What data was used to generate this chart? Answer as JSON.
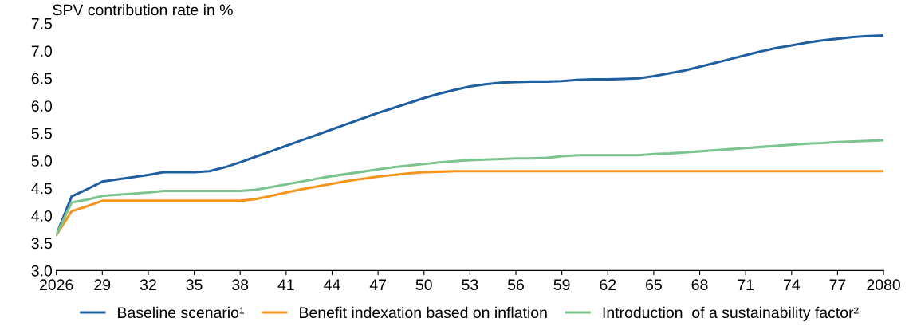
{
  "chart_data": {
    "type": "line",
    "ylabel": "SPV contribution rate in %",
    "x": [
      2026,
      2027,
      2028,
      2029,
      2030,
      2031,
      2032,
      2033,
      2034,
      2035,
      2036,
      2037,
      2038,
      2039,
      2040,
      2041,
      2042,
      2043,
      2044,
      2045,
      2046,
      2047,
      2048,
      2049,
      2050,
      2051,
      2052,
      2053,
      2054,
      2055,
      2056,
      2057,
      2058,
      2059,
      2060,
      2061,
      2062,
      2063,
      2064,
      2065,
      2066,
      2067,
      2068,
      2069,
      2070,
      2071,
      2072,
      2073,
      2074,
      2075,
      2076,
      2077,
      2078,
      2079,
      2080
    ],
    "series": [
      {
        "name": "Baseline scenario¹",
        "color": "#1f5fa0",
        "values": [
          3.65,
          4.35,
          4.48,
          4.62,
          4.66,
          4.7,
          4.74,
          4.79,
          4.79,
          4.79,
          4.81,
          4.88,
          4.97,
          5.07,
          5.17,
          5.27,
          5.37,
          5.47,
          5.57,
          5.67,
          5.77,
          5.87,
          5.96,
          6.05,
          6.14,
          6.22,
          6.29,
          6.35,
          6.39,
          6.42,
          6.43,
          6.44,
          6.44,
          6.45,
          6.47,
          6.48,
          6.48,
          6.49,
          6.5,
          6.54,
          6.59,
          6.64,
          6.71,
          6.78,
          6.85,
          6.92,
          6.99,
          7.05,
          7.1,
          7.15,
          7.19,
          7.22,
          7.25,
          7.27,
          7.28
        ]
      },
      {
        "name": "Benefit indexation based on inflation",
        "color": "#f7941d",
        "values": [
          3.65,
          4.08,
          4.17,
          4.27,
          4.27,
          4.27,
          4.27,
          4.27,
          4.27,
          4.27,
          4.27,
          4.27,
          4.27,
          4.3,
          4.36,
          4.42,
          4.48,
          4.53,
          4.58,
          4.63,
          4.67,
          4.71,
          4.74,
          4.77,
          4.79,
          4.8,
          4.81,
          4.81,
          4.81,
          4.81,
          4.81,
          4.81,
          4.81,
          4.81,
          4.81,
          4.81,
          4.81,
          4.81,
          4.81,
          4.81,
          4.81,
          4.81,
          4.81,
          4.81,
          4.81,
          4.81,
          4.81,
          4.81,
          4.81,
          4.81,
          4.81,
          4.81,
          4.81,
          4.81,
          4.81
        ]
      },
      {
        "name": "Introduction  of a sustainability factor²",
        "color": "#7cc48e",
        "values": [
          3.65,
          4.24,
          4.29,
          4.36,
          4.38,
          4.4,
          4.42,
          4.45,
          4.45,
          4.45,
          4.45,
          4.45,
          4.45,
          4.47,
          4.52,
          4.57,
          4.62,
          4.67,
          4.72,
          4.76,
          4.8,
          4.84,
          4.88,
          4.91,
          4.94,
          4.97,
          4.99,
          5.01,
          5.02,
          5.03,
          5.04,
          5.04,
          5.05,
          5.08,
          5.1,
          5.1,
          5.1,
          5.1,
          5.1,
          5.12,
          5.13,
          5.15,
          5.17,
          5.19,
          5.21,
          5.23,
          5.25,
          5.27,
          5.29,
          5.31,
          5.32,
          5.34,
          5.35,
          5.36,
          5.37
        ]
      }
    ],
    "xlim": [
      2026,
      2080
    ],
    "ylim": [
      3.0,
      7.5
    ],
    "xticks": [
      2026,
      {
        "value": 2029,
        "label": "29"
      },
      {
        "value": 2032,
        "label": "32"
      },
      {
        "value": 2035,
        "label": "35"
      },
      {
        "value": 2038,
        "label": "38"
      },
      {
        "value": 2041,
        "label": "41"
      },
      {
        "value": 2044,
        "label": "44"
      },
      {
        "value": 2047,
        "label": "47"
      },
      {
        "value": 2050,
        "label": "50"
      },
      {
        "value": 2053,
        "label": "53"
      },
      {
        "value": 2056,
        "label": "56"
      },
      {
        "value": 2059,
        "label": "59"
      },
      {
        "value": 2062,
        "label": "62"
      },
      {
        "value": 2065,
        "label": "65"
      },
      {
        "value": 2068,
        "label": "68"
      },
      {
        "value": 2071,
        "label": "71"
      },
      {
        "value": 2074,
        "label": "74"
      },
      {
        "value": 2077,
        "label": "77"
      },
      2080
    ],
    "yticks": [
      {
        "value": 3.0,
        "label": "3.0"
      },
      {
        "value": 3.5,
        "label": "3.5"
      },
      {
        "value": 4.0,
        "label": "4.0"
      },
      {
        "value": 4.5,
        "label": "4.5"
      },
      {
        "value": 5.0,
        "label": "5.0"
      },
      {
        "value": 5.5,
        "label": "5.5"
      },
      {
        "value": 6.0,
        "label": "6.0"
      },
      {
        "value": 6.5,
        "label": "6.5"
      },
      {
        "value": 7.0,
        "label": "7.0"
      },
      {
        "value": 7.5,
        "label": "7.5"
      }
    ],
    "legend": "bottom",
    "grid": false,
    "marker": "none",
    "line_style": "solid"
  }
}
